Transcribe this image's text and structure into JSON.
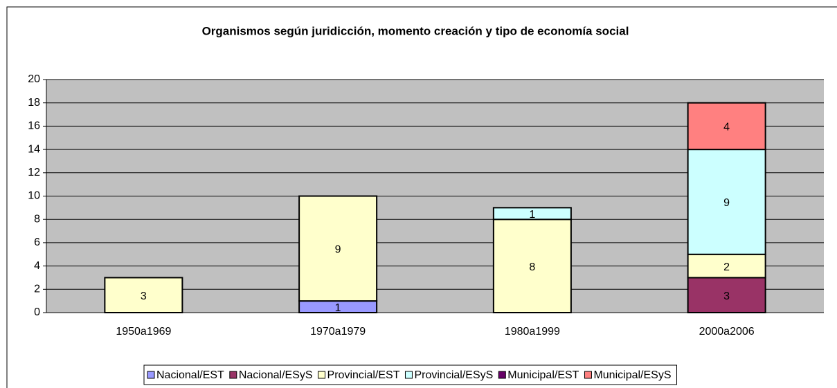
{
  "chart_data": {
    "type": "stacked_bar",
    "title": "Organismos según juridicción, momento creación y tipo de economía social",
    "categories": [
      "1950a1969",
      "1970a1979",
      "1980a1999",
      "2000a2006"
    ],
    "series": [
      {
        "name": "Nacional/EST",
        "color": "#9999ff",
        "values": [
          0,
          1,
          0,
          0
        ]
      },
      {
        "name": "Nacional/ESyS",
        "color": "#993366",
        "values": [
          0,
          0,
          0,
          3
        ]
      },
      {
        "name": "Provincial/EST",
        "color": "#ffffcc",
        "values": [
          3,
          9,
          8,
          2
        ]
      },
      {
        "name": "Provincial/ESyS",
        "color": "#ccffff",
        "values": [
          0,
          0,
          1,
          9
        ]
      },
      {
        "name": "Municipal/EST",
        "color": "#660066",
        "values": [
          0,
          0,
          0,
          0
        ]
      },
      {
        "name": "Municipal/ESyS",
        "color": "#ff8080",
        "values": [
          0,
          0,
          0,
          4
        ]
      }
    ],
    "ylim": [
      0,
      20
    ],
    "yticks": [
      0,
      2,
      4,
      6,
      8,
      10,
      12,
      14,
      16,
      18,
      20
    ],
    "grid": true,
    "legend": "bottom",
    "plot_background": "#c0c0c0"
  }
}
